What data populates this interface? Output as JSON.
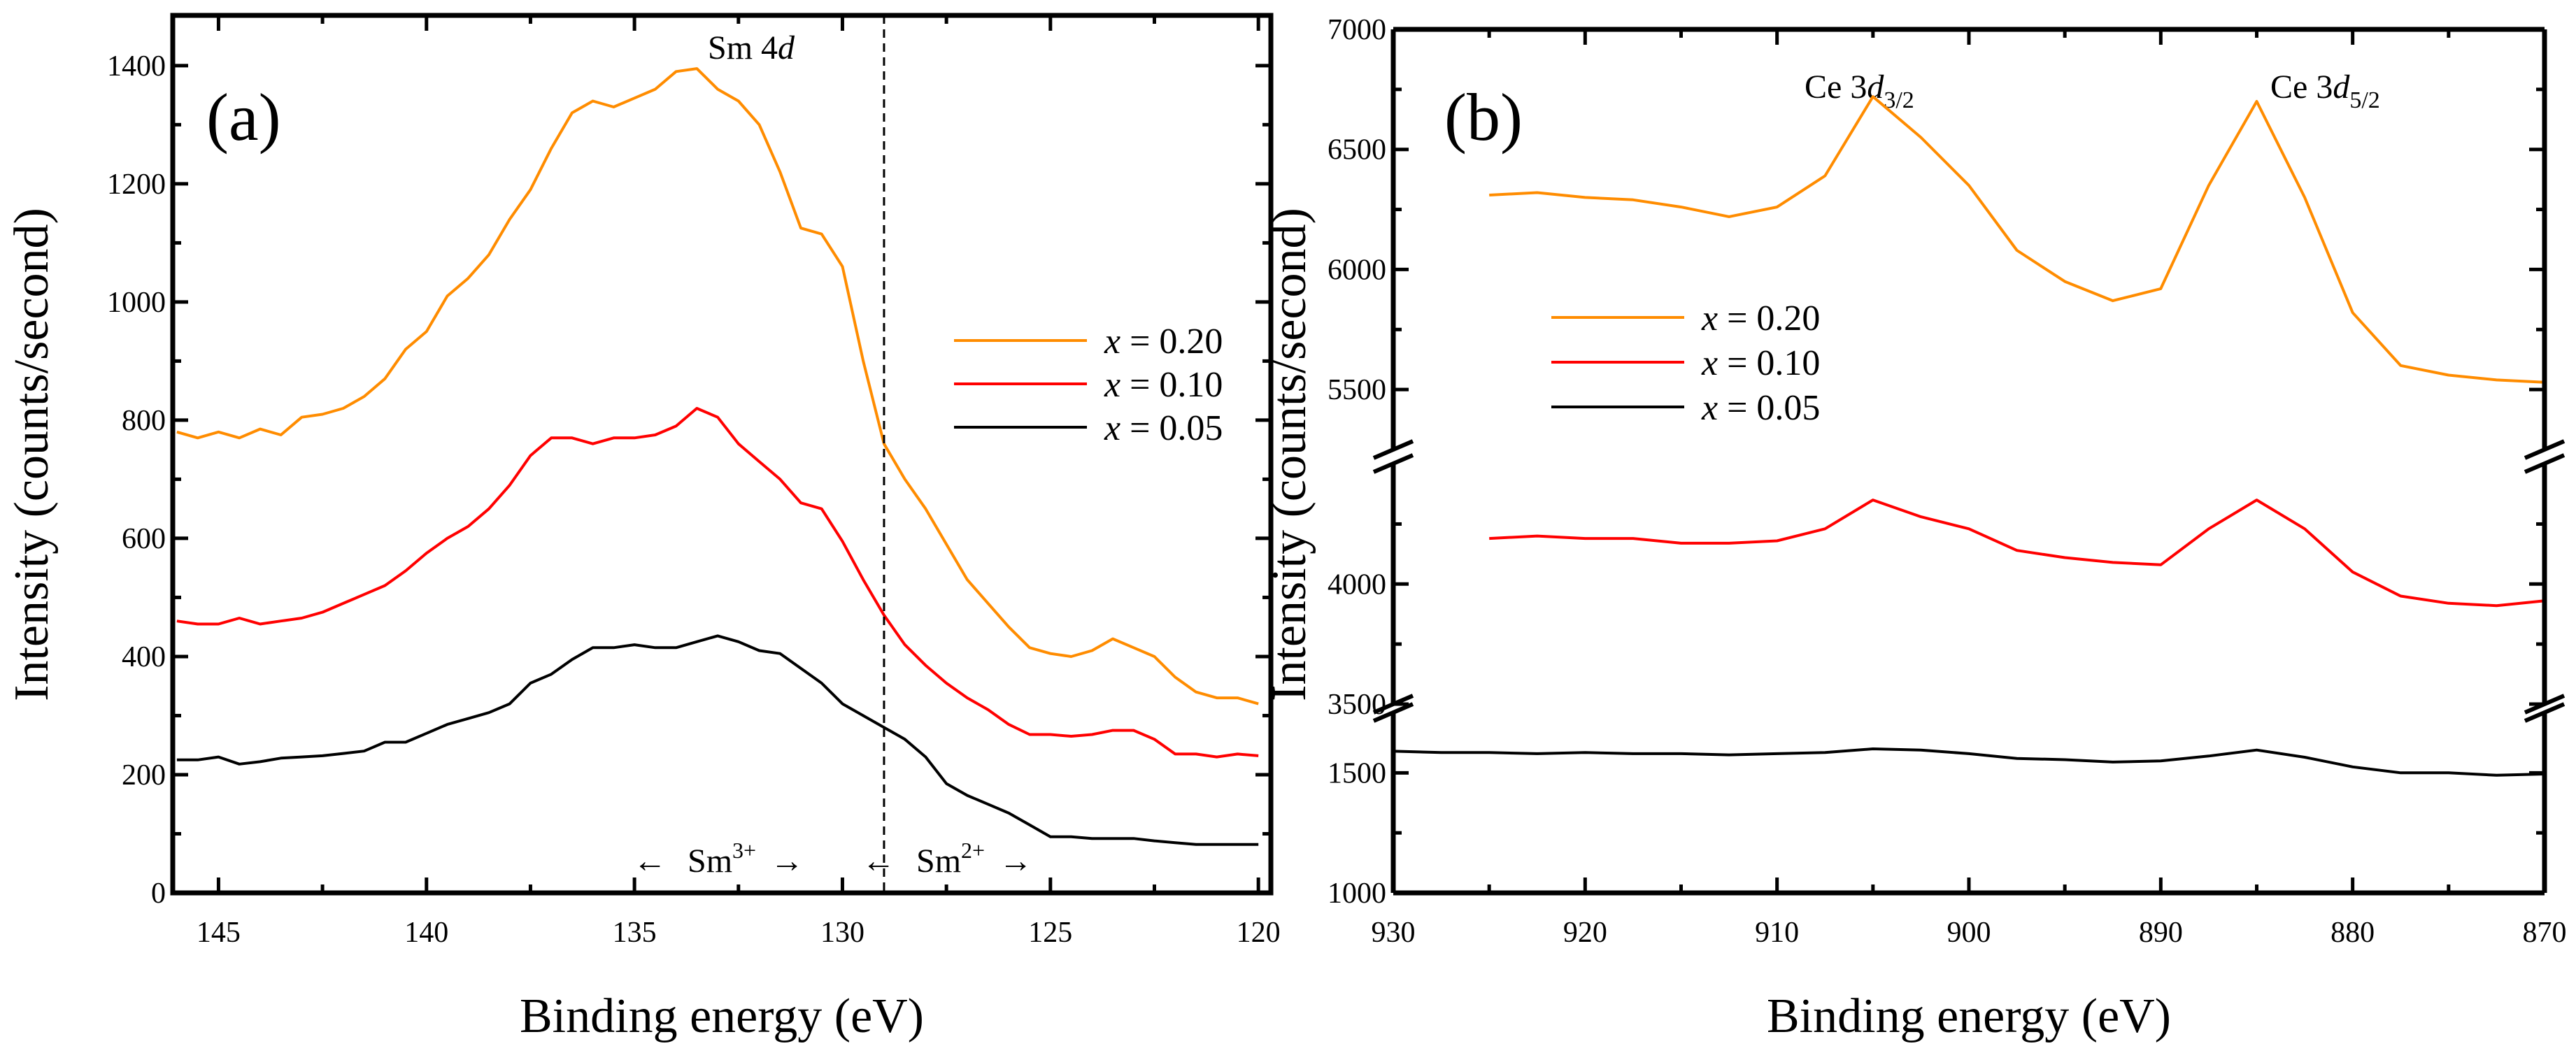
{
  "chart_data": [
    {
      "panel": "(a)",
      "type": "line",
      "xlabel": "Binding energy (eV)",
      "ylabel": "Intensity (counts/second)",
      "xlim": [
        146.1,
        119.7
      ],
      "ylim": [
        0,
        1485
      ],
      "xticks": [
        145,
        140,
        135,
        130,
        125,
        120
      ],
      "yticks": [
        0,
        200,
        400,
        600,
        800,
        1000,
        1200,
        1400
      ],
      "vline": 129,
      "annotations": {
        "title_pre": "Sm 4",
        "title_it": "d",
        "left_arrow": "←",
        "right_arrow": "→",
        "sm3_base": "Sm",
        "sm3_sup": "3+",
        "sm2_base": "Sm",
        "sm2_sup": "2+"
      },
      "legend_position": "right",
      "x": [
        146,
        145.5,
        145,
        144.5,
        144,
        143.5,
        143,
        142.5,
        142,
        141.5,
        141,
        140.5,
        140,
        139.5,
        139,
        138.5,
        138,
        137.5,
        137,
        136.5,
        136,
        135.5,
        135,
        134.5,
        134,
        133.5,
        133,
        132.5,
        132,
        131.5,
        131,
        130.5,
        130,
        129.5,
        129,
        128.5,
        128,
        127.5,
        127,
        126.5,
        126,
        125.5,
        125,
        124.5,
        124,
        123.5,
        123,
        122.5,
        122,
        121.5,
        121,
        120.5,
        120
      ],
      "series": [
        {
          "name": "x = 0.20",
          "var": "x",
          "value": " = 0.20",
          "color": "#ff8c00",
          "values": [
            780,
            770,
            780,
            770,
            785,
            775,
            805,
            810,
            820,
            840,
            870,
            920,
            950,
            1010,
            1040,
            1080,
            1140,
            1190,
            1260,
            1320,
            1340,
            1330,
            1345,
            1360,
            1390,
            1395,
            1360,
            1340,
            1300,
            1220,
            1125,
            1115,
            1060,
            900,
            760,
            700,
            650,
            590,
            530,
            490,
            450,
            415,
            405,
            400,
            410,
            430,
            415,
            400,
            365,
            340,
            330,
            330,
            320
          ]
        },
        {
          "name": "x = 0.10",
          "var": "x",
          "value": " = 0.10",
          "color": "#ff0000",
          "values": [
            460,
            455,
            455,
            465,
            455,
            460,
            465,
            475,
            490,
            505,
            520,
            545,
            575,
            600,
            620,
            650,
            690,
            740,
            770,
            770,
            760,
            770,
            770,
            775,
            790,
            820,
            805,
            760,
            730,
            700,
            660,
            650,
            595,
            530,
            470,
            420,
            385,
            355,
            330,
            310,
            285,
            268,
            268,
            265,
            268,
            275,
            275,
            260,
            235,
            235,
            230,
            235,
            232
          ]
        },
        {
          "name": "x = 0.05",
          "var": "x",
          "value": " = 0.05",
          "color": "#000000",
          "values": [
            225,
            225,
            230,
            218,
            222,
            228,
            230,
            232,
            236,
            240,
            255,
            255,
            270,
            285,
            295,
            305,
            320,
            355,
            370,
            395,
            415,
            415,
            420,
            415,
            415,
            425,
            435,
            425,
            410,
            405,
            380,
            355,
            320,
            300,
            280,
            260,
            230,
            185,
            165,
            150,
            135,
            115,
            95,
            95,
            92,
            92,
            92,
            88,
            85,
            82,
            82,
            82,
            82
          ]
        }
      ]
    },
    {
      "panel": "(b)",
      "type": "line",
      "xlabel": "Binding energy (eV)",
      "ylabel": "Intensity (counts/second)",
      "xlim": [
        930,
        870
      ],
      "y_segments": [
        [
          1000,
          1750
        ],
        [
          3500,
          4500
        ],
        [
          5250,
          7000
        ]
      ],
      "xticks": [
        930,
        920,
        910,
        900,
        890,
        880,
        870
      ],
      "yticks": [
        1000,
        1500,
        3500,
        4000,
        5500,
        6000,
        6500,
        7000
      ],
      "annotations": {
        "peak1_pre": "Ce 3",
        "peak1_it": "d",
        "peak1_sub": "3/2",
        "peak2_pre": "Ce 3",
        "peak2_it": "d",
        "peak2_sub": "5/2"
      },
      "legend_position": "center-left",
      "x": [
        930,
        927.5,
        925,
        922.5,
        920,
        917.5,
        915,
        912.5,
        910,
        907.5,
        905,
        902.5,
        900,
        897.5,
        895,
        892.5,
        890,
        887.5,
        885,
        882.5,
        880,
        877.5,
        875,
        872.5,
        870
      ],
      "series": [
        {
          "name": "x = 0.20",
          "var": "x",
          "value": " = 0.20",
          "color": "#ff8c00",
          "values": [
            null,
            null,
            6310,
            6320,
            6300,
            6290,
            6260,
            6220,
            6260,
            6390,
            6720,
            6550,
            6350,
            6080,
            5950,
            5870,
            5920,
            6350,
            6700,
            6300,
            5820,
            5600,
            5560,
            5540,
            5530
          ]
        },
        {
          "name": "x = 0.10",
          "var": "x",
          "value": " = 0.10",
          "color": "#ff0000",
          "values": [
            null,
            null,
            4190,
            4200,
            4190,
            4190,
            4170,
            4170,
            4180,
            4230,
            4350,
            4280,
            4230,
            4140,
            4110,
            4090,
            4080,
            4230,
            4350,
            4230,
            4050,
            3950,
            3920,
            3910,
            3930
          ]
        },
        {
          "name": "x = 0.05",
          "var": "x",
          "value": " = 0.05",
          "color": "#000000",
          "values": [
            1590,
            1585,
            1585,
            1580,
            1585,
            1580,
            1580,
            1575,
            1580,
            1585,
            1600,
            1595,
            1580,
            1560,
            1555,
            1545,
            1550,
            1570,
            1595,
            1565,
            1525,
            1500,
            1500,
            1490,
            1495
          ]
        }
      ]
    }
  ]
}
